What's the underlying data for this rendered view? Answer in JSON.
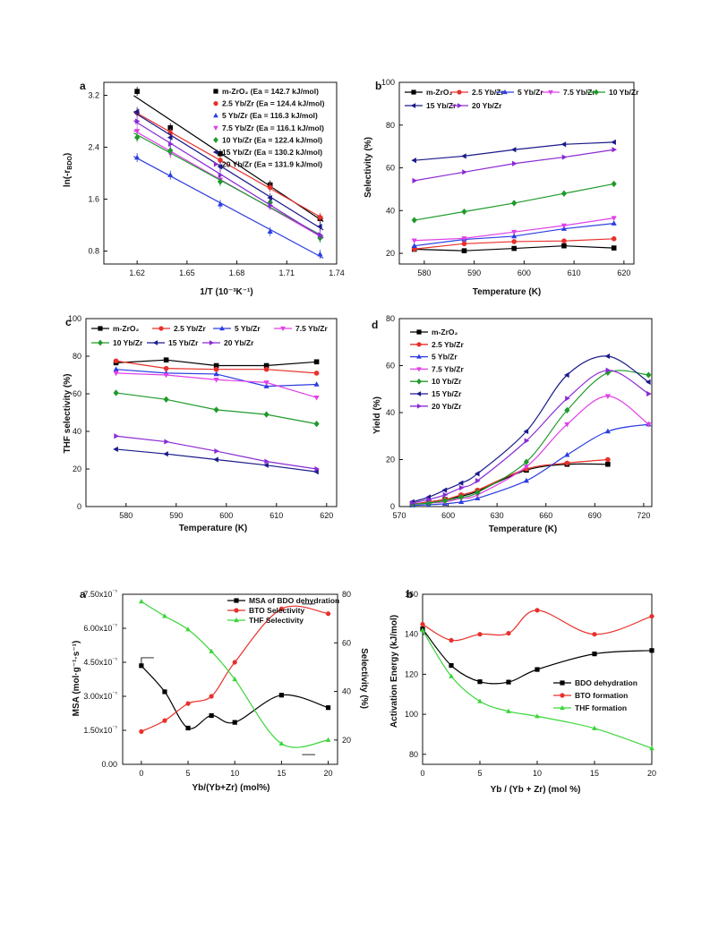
{
  "chart_data": [
    {
      "panel": "a",
      "type": "scatter",
      "xlabel": "1/T (10⁻³K⁻¹)",
      "ylabel": "ln(-r_BDO)",
      "xlim": [
        1.6,
        1.74
      ],
      "ylim": [
        0.6,
        3.4
      ],
      "xticks": [
        "1.62",
        "1.65",
        "1.68",
        "1.71",
        "1.74"
      ],
      "yticks": [
        "0.8",
        "1.6",
        "2.4",
        "3.2"
      ],
      "legend_position": "top-right",
      "x": [
        1.62,
        1.64,
        1.67,
        1.7,
        1.73
      ],
      "series": [
        {
          "name": "m-ZrO₂ (Ea = 142.7 kJ/mol)",
          "color": "#000000",
          "marker": "square",
          "values": [
            3.26,
            2.7,
            2.3,
            1.82,
            1.3
          ]
        },
        {
          "name": "2.5 Yb/Zr (Ea = 124.4 kJ/mol)",
          "color": "#e8302a",
          "marker": "circle",
          "values": [
            2.93,
            2.62,
            2.2,
            1.78,
            1.32
          ]
        },
        {
          "name": "5 Yb/Zr (Ea = 116.3 kJ/mol)",
          "color": "#2b3de0",
          "marker": "triangle",
          "values": [
            2.24,
            1.97,
            1.52,
            1.1,
            0.75
          ]
        },
        {
          "name": "7.5 Yb/Zr (Ea = 116.1 kJ/mol)",
          "color": "#e040e8",
          "marker": "triangle-down",
          "values": [
            2.65,
            2.3,
            1.9,
            1.52,
            1.0
          ]
        },
        {
          "name": "10 Yb/Zr (Ea = 122.4 kJ/mol)",
          "color": "#1e9a2a",
          "marker": "diamond",
          "values": [
            2.55,
            2.35,
            1.87,
            1.55,
            1.0
          ]
        },
        {
          "name": "15 Yb/Zr (Ea = 130.2 kJ/mol)",
          "color": "#1a1a8a",
          "marker": "triangle-left",
          "values": [
            2.95,
            2.55,
            2.1,
            1.62,
            1.18
          ]
        },
        {
          "name": "20 Yb/Zr (Ea = 131.9 kJ/mol)",
          "color": "#8a2ad6",
          "marker": "triangle-right",
          "values": [
            2.8,
            2.45,
            1.97,
            1.5,
            1.05
          ]
        }
      ]
    },
    {
      "panel": "b",
      "type": "line",
      "xlabel": "Temperature (K)",
      "ylabel": "Selectivity (%)",
      "xlim": [
        575,
        622
      ],
      "ylim": [
        15,
        100
      ],
      "xticks": [
        "580",
        "590",
        "600",
        "610",
        "620"
      ],
      "yticks": [
        "20",
        "40",
        "60",
        "80",
        "100"
      ],
      "legend_position": "top",
      "x": [
        578,
        588,
        598,
        608,
        618
      ],
      "series": [
        {
          "name": "m-ZrO₂",
          "color": "#000000",
          "marker": "square",
          "values": [
            21.9,
            21.2,
            22.3,
            23.5,
            22.5
          ]
        },
        {
          "name": "2.5 Yb/Zr",
          "color": "#e8302a",
          "marker": "circle",
          "values": [
            22.0,
            24.5,
            25.5,
            25.8,
            26.8
          ]
        },
        {
          "name": "5 Yb/Zr",
          "color": "#2b3de0",
          "marker": "triangle",
          "values": [
            23.5,
            26.5,
            28.0,
            31.5,
            34.0
          ]
        },
        {
          "name": "7.5 Yb/Zr",
          "color": "#e040e8",
          "marker": "triangle-down",
          "values": [
            26.0,
            27.0,
            30.0,
            33.0,
            36.5
          ]
        },
        {
          "name": "10 Yb/Zr",
          "color": "#1e9a2a",
          "marker": "diamond",
          "values": [
            35.5,
            39.5,
            43.5,
            48.0,
            52.5
          ]
        },
        {
          "name": "15 Yb/Zr",
          "color": "#1a1a8a",
          "marker": "triangle-left",
          "values": [
            63.5,
            65.5,
            68.5,
            71.0,
            72.0
          ]
        },
        {
          "name": "20 Yb/Zr",
          "color": "#8a2ad6",
          "marker": "triangle-right",
          "values": [
            54.0,
            58.0,
            62.0,
            65.0,
            68.5
          ]
        }
      ]
    },
    {
      "panel": "c",
      "type": "line",
      "xlabel": "Temperature (K)",
      "ylabel": "THF selectivity (%)",
      "xlim": [
        572,
        622
      ],
      "ylim": [
        0,
        100
      ],
      "xticks": [
        "580",
        "590",
        "600",
        "610",
        "620"
      ],
      "yticks": [
        "0",
        "20",
        "40",
        "60",
        "80",
        "100"
      ],
      "legend_position": "top",
      "x": [
        578,
        588,
        598,
        608,
        618
      ],
      "series": [
        {
          "name": "m-ZrO₂",
          "color": "#000000",
          "marker": "square",
          "values": [
            76.5,
            78.0,
            75.0,
            75.0,
            77.0
          ]
        },
        {
          "name": "2.5 Yb/Zr",
          "color": "#e8302a",
          "marker": "circle",
          "values": [
            77.5,
            73.5,
            73.0,
            73.0,
            71.0
          ]
        },
        {
          "name": "5 Yb/Zr",
          "color": "#2b3de0",
          "marker": "triangle",
          "values": [
            73.0,
            71.0,
            70.5,
            64.0,
            65.0
          ]
        },
        {
          "name": "7.5 Yb/Zr",
          "color": "#e040e8",
          "marker": "triangle-down",
          "values": [
            71.0,
            70.0,
            67.5,
            66.0,
            58.0
          ]
        },
        {
          "name": "10 Yb/Zr",
          "color": "#1e9a2a",
          "marker": "diamond",
          "values": [
            60.5,
            57.0,
            51.5,
            49.0,
            44.0
          ]
        },
        {
          "name": "15 Yb/Zr",
          "color": "#1a1a8a",
          "marker": "triangle-left",
          "values": [
            30.5,
            28.0,
            25.0,
            22.0,
            18.5
          ]
        },
        {
          "name": "20 Yb/Zr",
          "color": "#8a2ad6",
          "marker": "triangle-right",
          "values": [
            37.5,
            34.5,
            29.5,
            24.0,
            20.0
          ]
        }
      ]
    },
    {
      "panel": "d",
      "type": "scatter",
      "xlabel": "Temperature (K)",
      "ylabel": "Yield (%)",
      "xlim": [
        570,
        725
      ],
      "ylim": [
        0,
        80
      ],
      "xticks": [
        "570",
        "600",
        "630",
        "660",
        "690",
        "720"
      ],
      "yticks": [
        "0",
        "20",
        "40",
        "60",
        "80"
      ],
      "legend_position": "top-left",
      "series": [
        {
          "name": "m-ZrO₂",
          "color": "#000000",
          "marker": "square",
          "x": [
            578,
            588,
            598,
            608,
            618,
            648,
            673,
            698
          ],
          "values": [
            1.0,
            2.0,
            3.0,
            4.5,
            6.5,
            15.5,
            18.0,
            18.0
          ]
        },
        {
          "name": "2.5 Yb/Zr",
          "color": "#e8302a",
          "marker": "circle",
          "x": [
            578,
            588,
            598,
            608,
            618,
            648,
            673,
            698
          ],
          "values": [
            1.0,
            2.0,
            3.0,
            5.0,
            7.0,
            16.0,
            18.5,
            20.0
          ]
        },
        {
          "name": "5 Yb/Zr",
          "color": "#2b3de0",
          "marker": "triangle",
          "x": [
            578,
            588,
            598,
            608,
            618,
            648,
            673,
            698,
            723
          ],
          "values": [
            0.5,
            0.8,
            1.2,
            2.0,
            3.5,
            11.0,
            22.0,
            32.0,
            35.0
          ]
        },
        {
          "name": "7.5 Yb/Zr",
          "color": "#e040e8",
          "marker": "triangle-down",
          "x": [
            578,
            588,
            598,
            608,
            618,
            648,
            673,
            698,
            723
          ],
          "values": [
            1.0,
            1.5,
            2.0,
            3.5,
            5.0,
            17.0,
            35.0,
            47.0,
            35.0
          ]
        },
        {
          "name": "10 Yb/Zr",
          "color": "#1e9a2a",
          "marker": "diamond",
          "x": [
            578,
            588,
            598,
            608,
            618,
            648,
            673,
            698,
            723
          ],
          "values": [
            1.0,
            1.5,
            2.5,
            4.0,
            6.0,
            19.0,
            41.0,
            57.0,
            56.0
          ]
        },
        {
          "name": "15 Yb/Zr",
          "color": "#1a1a8a",
          "marker": "triangle-left",
          "x": [
            578,
            588,
            598,
            608,
            618,
            648,
            673,
            698,
            723
          ],
          "values": [
            2.0,
            4.0,
            7.0,
            10.0,
            14.0,
            32.0,
            56.0,
            64.0,
            53.0
          ]
        },
        {
          "name": "20 Yb/Zr",
          "color": "#8a2ad6",
          "marker": "triangle-right",
          "x": [
            578,
            588,
            598,
            608,
            618,
            648,
            673,
            698,
            723
          ],
          "values": [
            1.5,
            3.0,
            5.0,
            8.0,
            11.0,
            28.0,
            46.0,
            58.0,
            48.0
          ]
        }
      ]
    },
    {
      "panel": "a",
      "type": "line",
      "xlabel": "Yb/(Yb+Zr) (mol%)",
      "ylabel": "MSA (mol·g⁻¹·s⁻¹)",
      "y2label": "Selectivity (%)",
      "xlim": [
        -2,
        21
      ],
      "ylim": [
        0,
        0.0075
      ],
      "y2lim": [
        10,
        80
      ],
      "xticks": [
        "0",
        "5",
        "10",
        "15",
        "20"
      ],
      "yticks": [
        "0.00",
        "1.50x10⁻⁵",
        "3.00x10⁻⁵",
        "4.50x10⁻⁵",
        "6.00x10⁻⁵",
        "7.50x10⁻⁵"
      ],
      "y2ticks": [
        "20",
        "40",
        "60",
        "80"
      ],
      "legend_position": "top-center",
      "x": [
        0,
        2.5,
        5,
        7.5,
        10,
        15,
        20
      ],
      "series": [
        {
          "name": "MSA of BDO dehydration",
          "axis": "left",
          "color": "#000000",
          "marker": "square",
          "values": [
            0.00435,
            0.0032,
            0.0016,
            0.00215,
            0.00185,
            0.00305,
            0.0025
          ]
        },
        {
          "name": "BTO Selectivity",
          "axis": "right",
          "color": "#e8302a",
          "marker": "circle",
          "values": [
            23.5,
            28.0,
            35.0,
            38.0,
            52.0,
            74.0,
            72.0
          ]
        },
        {
          "name": "THF Selectivity",
          "axis": "right",
          "color": "#3ad63a",
          "marker": "triangle",
          "values": [
            77.0,
            71.0,
            65.5,
            56.5,
            45.0,
            18.5,
            20.0
          ]
        }
      ]
    },
    {
      "panel": "b",
      "type": "line",
      "xlabel": "Yb / (Yb + Zr) (mol %)",
      "ylabel": "Activation Energy (kJ/mol)",
      "xlim": [
        0,
        20
      ],
      "ylim": [
        75,
        160
      ],
      "xticks": [
        "0",
        "5",
        "10",
        "15",
        "20"
      ],
      "yticks": [
        "80",
        "100",
        "120",
        "140",
        "160"
      ],
      "legend_position": "bottom-right",
      "x": [
        0,
        2.5,
        5,
        7.5,
        10,
        15,
        20
      ],
      "series": [
        {
          "name": "BDO dehydration",
          "color": "#000000",
          "marker": "square",
          "values": [
            142.7,
            124.4,
            116.3,
            116.1,
            122.4,
            130.2,
            131.9
          ]
        },
        {
          "name": "BTO formation",
          "color": "#e8302a",
          "marker": "circle",
          "values": [
            145.0,
            137.0,
            140.0,
            140.5,
            152.0,
            140.0,
            149.0
          ]
        },
        {
          "name": "THF formation",
          "color": "#3ad63a",
          "marker": "triangle",
          "values": [
            142.0,
            119.0,
            106.5,
            101.5,
            99.0,
            93.0,
            83.0
          ]
        }
      ]
    }
  ],
  "labels": {
    "p1": {
      "letter": "a",
      "xtitle": "1/T (10⁻³K⁻¹)",
      "ytitle": "ln(-r",
      "ytitle_sub": "BDO",
      "ytitle_end": ")"
    },
    "p2": {
      "letter": "b",
      "xtitle": "Temperature (K)",
      "ytitle": "Selectivity (%)"
    },
    "p3": {
      "letter": "c",
      "xtitle": "Temperature (K)",
      "ytitle": "THF selectivity (%)"
    },
    "p4": {
      "letter": "d",
      "xtitle": "Temperature (K)",
      "ytitle": "Yield (%)"
    },
    "p5": {
      "letter": "a",
      "xtitle": "Yb/(Yb+Zr) (mol%)",
      "ytitle": "MSA (mol·g⁻¹·s⁻¹)",
      "y2title": "Selectivity (%)"
    },
    "p6": {
      "letter": "b",
      "xtitle": "Yb / (Yb + Zr) (mol %)",
      "ytitle": "Activation Energy (kJ/mol)"
    }
  }
}
